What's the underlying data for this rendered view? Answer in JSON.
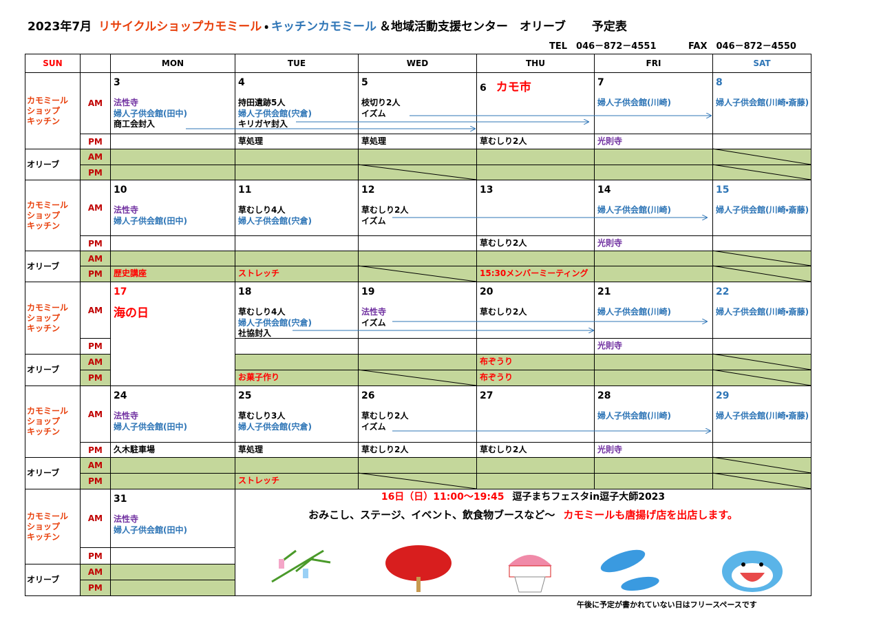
{
  "header": {
    "year_month": "2023年7月",
    "shop": "リサイクルショップカモミール",
    "dot": "・",
    "kitchen": "キッチンカモミール",
    "center": "＆地域活動支援センター　オリーブ",
    "schedule": "予定表",
    "tel": "TEL　046－872－4551",
    "fax": "FAX　046－872－4550"
  },
  "days_of_week": [
    "SUN",
    "MON",
    "TUE",
    "WED",
    "THU",
    "FRI",
    "SAT"
  ],
  "row_labels": {
    "kamomile": "カモミール\nショップ\nキッチン",
    "olive": "オリーブ",
    "am": "AM",
    "pm": "PM"
  },
  "weeks": [
    {
      "am": [
        {
          "date": "3",
          "lines": [
            {
              "text": "法性寺",
              "color": "#7030a0"
            },
            {
              "text": "婦人子供会館(田中)",
              "color": "#2e75b6"
            },
            {
              "text": "商工会封入"
            }
          ]
        },
        {
          "date": "4",
          "lines": [
            {
              "text": "持田遺跡5人"
            },
            {
              "text": "婦人子供会館(宍倉)",
              "color": "#2e75b6"
            },
            {
              "text": "キリガヤ封入"
            }
          ]
        },
        {
          "date": "5",
          "lines": [
            {
              "text": "枝切り2人"
            },
            {
              "text": "イズム"
            }
          ]
        },
        {
          "date": "6",
          "event": "カモ市",
          "lines": []
        },
        {
          "date": "7",
          "lines": [
            {
              "text": "婦人子供会館(川崎)",
              "color": "#2e75b6"
            }
          ]
        },
        {
          "date": "8",
          "lines": [
            {
              "text": "婦人子供会館(川崎・斎藤)",
              "color": "#2e75b6"
            }
          ]
        }
      ],
      "pm": [
        [],
        [
          {
            "text": "草処理"
          }
        ],
        [
          {
            "text": "草処理"
          }
        ],
        [
          {
            "text": "草むしり2人"
          }
        ],
        [
          {
            "text": "光則寺",
            "color": "#7030a0"
          }
        ],
        []
      ],
      "olive_am": [
        [],
        [],
        [],
        [],
        [],
        []
      ],
      "olive_pm": [
        [],
        [],
        [],
        [],
        [],
        []
      ]
    },
    {
      "am": [
        {
          "date": "10",
          "lines": [
            {
              "text": "法性寺",
              "color": "#7030a0"
            },
            {
              "text": "婦人子供会館(田中)",
              "color": "#2e75b6"
            }
          ]
        },
        {
          "date": "11",
          "lines": [
            {
              "text": "草むしり4人"
            },
            {
              "text": "婦人子供会館(宍倉)",
              "color": "#2e75b6"
            }
          ]
        },
        {
          "date": "12",
          "lines": [
            {
              "text": "草むしり2人"
            },
            {
              "text": "イズム"
            }
          ]
        },
        {
          "date": "13",
          "lines": []
        },
        {
          "date": "14",
          "lines": [
            {
              "text": "婦人子供会館(川崎)",
              "color": "#2e75b6"
            }
          ]
        },
        {
          "date": "15",
          "lines": [
            {
              "text": "婦人子供会館(川崎・斎藤)",
              "color": "#2e75b6"
            }
          ]
        }
      ],
      "pm": [
        [],
        [],
        [],
        [
          {
            "text": "草むしり2人"
          }
        ],
        [
          {
            "text": "光則寺",
            "color": "#7030a0"
          }
        ],
        []
      ],
      "olive_am": [
        [],
        [],
        [],
        [],
        [],
        []
      ],
      "olive_pm": [
        [
          {
            "text": "歴史講座",
            "color": "#ff0000"
          }
        ],
        [
          {
            "text": "ストレッチ",
            "color": "#ff0000"
          }
        ],
        [],
        [
          {
            "text": "15:30メンバーミーティング",
            "color": "#ff0000"
          }
        ],
        [],
        []
      ]
    },
    {
      "am": [
        {
          "date": "17",
          "date_color": "#ff0000",
          "event": "海の日",
          "lines": []
        },
        {
          "date": "18",
          "lines": [
            {
              "text": "草むしり4人"
            },
            {
              "text": "婦人子供会館(宍倉)",
              "color": "#2e75b6"
            },
            {
              "text": "社協封入"
            }
          ]
        },
        {
          "date": "19",
          "lines": [
            {
              "text": "法性寺",
              "color": "#7030a0"
            },
            {
              "text": "イズム"
            }
          ]
        },
        {
          "date": "20",
          "lines": [
            {
              "text": "草むしり2人"
            }
          ]
        },
        {
          "date": "21",
          "lines": [
            {
              "text": "婦人子供会館(川崎)",
              "color": "#2e75b6"
            }
          ]
        },
        {
          "date": "22",
          "lines": [
            {
              "text": "婦人子供会館(川崎・斎藤)",
              "color": "#2e75b6"
            }
          ]
        }
      ],
      "pm": [
        [],
        [],
        [],
        [],
        [
          {
            "text": "光則寺",
            "color": "#7030a0"
          }
        ],
        []
      ],
      "olive_am": [
        [],
        [],
        [],
        [
          {
            "text": "布ぞうり",
            "color": "#ff0000"
          }
        ],
        [],
        []
      ],
      "olive_pm": [
        [],
        [
          {
            "text": "お菓子作り",
            "color": "#ff0000"
          }
        ],
        [],
        [
          {
            "text": "布ぞうり",
            "color": "#ff0000"
          }
        ],
        [],
        []
      ]
    },
    {
      "am": [
        {
          "date": "24",
          "lines": [
            {
              "text": "法性寺",
              "color": "#7030a0"
            },
            {
              "text": "婦人子供会館(田中)",
              "color": "#2e75b6"
            }
          ]
        },
        {
          "date": "25",
          "lines": [
            {
              "text": "草むしり3人"
            },
            {
              "text": "婦人子供会館(宍倉)",
              "color": "#2e75b6"
            }
          ]
        },
        {
          "date": "26",
          "lines": [
            {
              "text": "草むしり2人"
            },
            {
              "text": "イズム"
            }
          ]
        },
        {
          "date": "27",
          "lines": []
        },
        {
          "date": "28",
          "lines": [
            {
              "text": "婦人子供会館(川崎)",
              "color": "#2e75b6"
            }
          ]
        },
        {
          "date": "29",
          "lines": [
            {
              "text": "婦人子供会館(川崎・斎藤)",
              "color": "#2e75b6"
            }
          ]
        }
      ],
      "pm": [
        [
          {
            "text": "久木駐車場"
          }
        ],
        [
          {
            "text": "草処理"
          }
        ],
        [
          {
            "text": "草むしり2人"
          }
        ],
        [
          {
            "text": "草むしり2人"
          }
        ],
        [
          {
            "text": "光則寺",
            "color": "#7030a0"
          }
        ],
        []
      ],
      "olive_am": [
        [],
        [],
        [],
        [],
        [],
        []
      ],
      "olive_pm": [
        [],
        [
          {
            "text": "ストレッチ",
            "color": "#ff0000"
          }
        ],
        [],
        [],
        [],
        []
      ]
    },
    {
      "am": [
        {
          "date": "31",
          "lines": [
            {
              "text": "法性寺",
              "color": "#7030a0"
            },
            {
              "text": "婦人子供会館(田中)",
              "color": "#2e75b6"
            }
          ]
        }
      ],
      "pm": [
        []
      ],
      "olive_am": [
        []
      ],
      "olive_pm": [
        []
      ],
      "notice": [
        [
          {
            "text": "16日（日）11:00～19:45",
            "color": "#ff0000"
          },
          {
            "text": "逗子まちフェスタin逗子大師2023"
          }
        ],
        [
          {
            "text": "おみこし、ステージ、イベント、飲食物ブースなど～"
          },
          {
            "text": "カモミールも唐揚げ店を出店します。",
            "color": "#ff0000"
          }
        ]
      ]
    }
  ],
  "footer_note": "午後に予定が書かれていない日はフリースペースです"
}
